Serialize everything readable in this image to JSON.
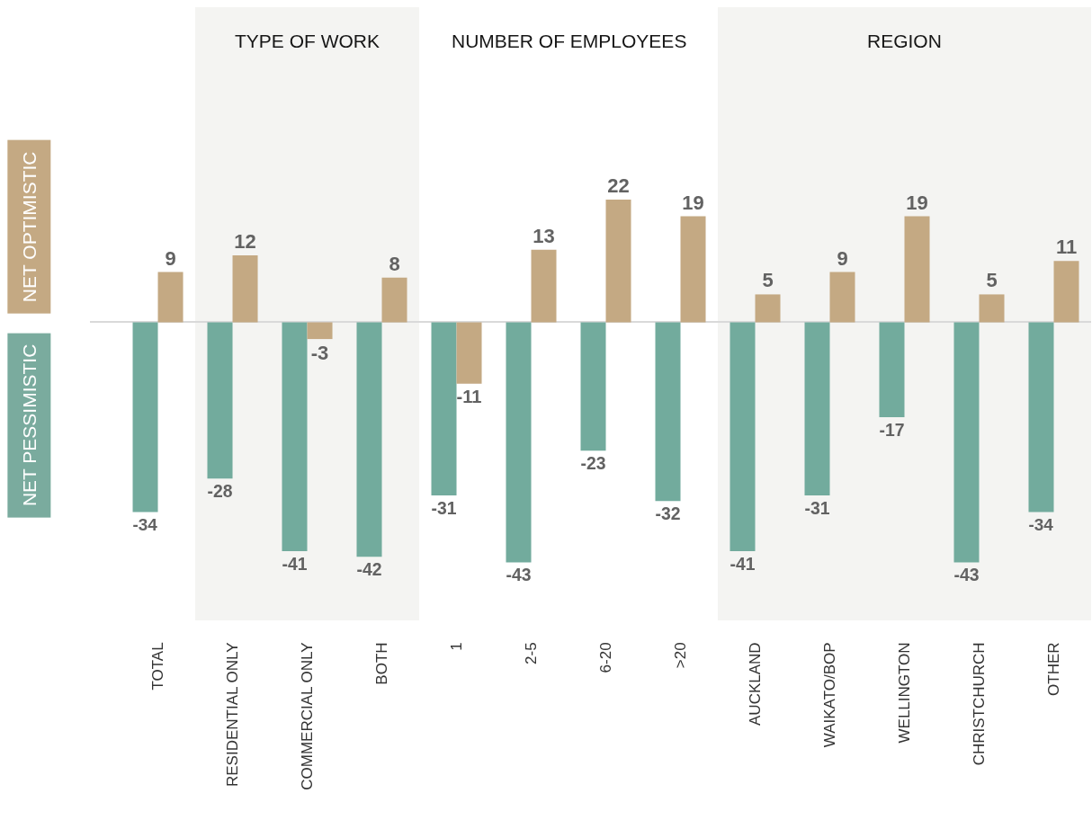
{
  "chart_data": {
    "type": "bar",
    "categories": [
      "TOTAL",
      "RESIDENTIAL ONLY",
      "COMMERCIAL ONLY",
      "BOTH",
      "1",
      "2-5",
      "6-20",
      ">20",
      "AUCKLAND",
      "WAIKATO/BOP",
      "WELLINGTON",
      "CHRISTCHURCH",
      "OTHER"
    ],
    "series": [
      {
        "color": "#72ab9d",
        "values": [
          -34,
          -28,
          -41,
          -42,
          -31,
          -43,
          -23,
          -32,
          -41,
          -31,
          -17,
          -43,
          -34
        ]
      },
      {
        "color": "#c4a983",
        "values": [
          9,
          12,
          -3,
          8,
          -11,
          13,
          22,
          19,
          5,
          9,
          19,
          5,
          11
        ]
      }
    ],
    "data_labels": true,
    "bands": [
      {
        "axis": "x",
        "from": "RESIDENTIAL ONLY",
        "to": "BOTH",
        "label": "TYPE OF WORK",
        "color": "#f4f4f2"
      },
      {
        "axis": "x",
        "from": "AUCKLAND",
        "to": "OTHER",
        "label": "REGION",
        "color": "#f4f4f2"
      }
    ],
    "annotations": [
      "NET OPTIMISTIC",
      "NET PESSIMISTIC",
      "NUMBER OF EMPLOYEES"
    ]
  }
}
